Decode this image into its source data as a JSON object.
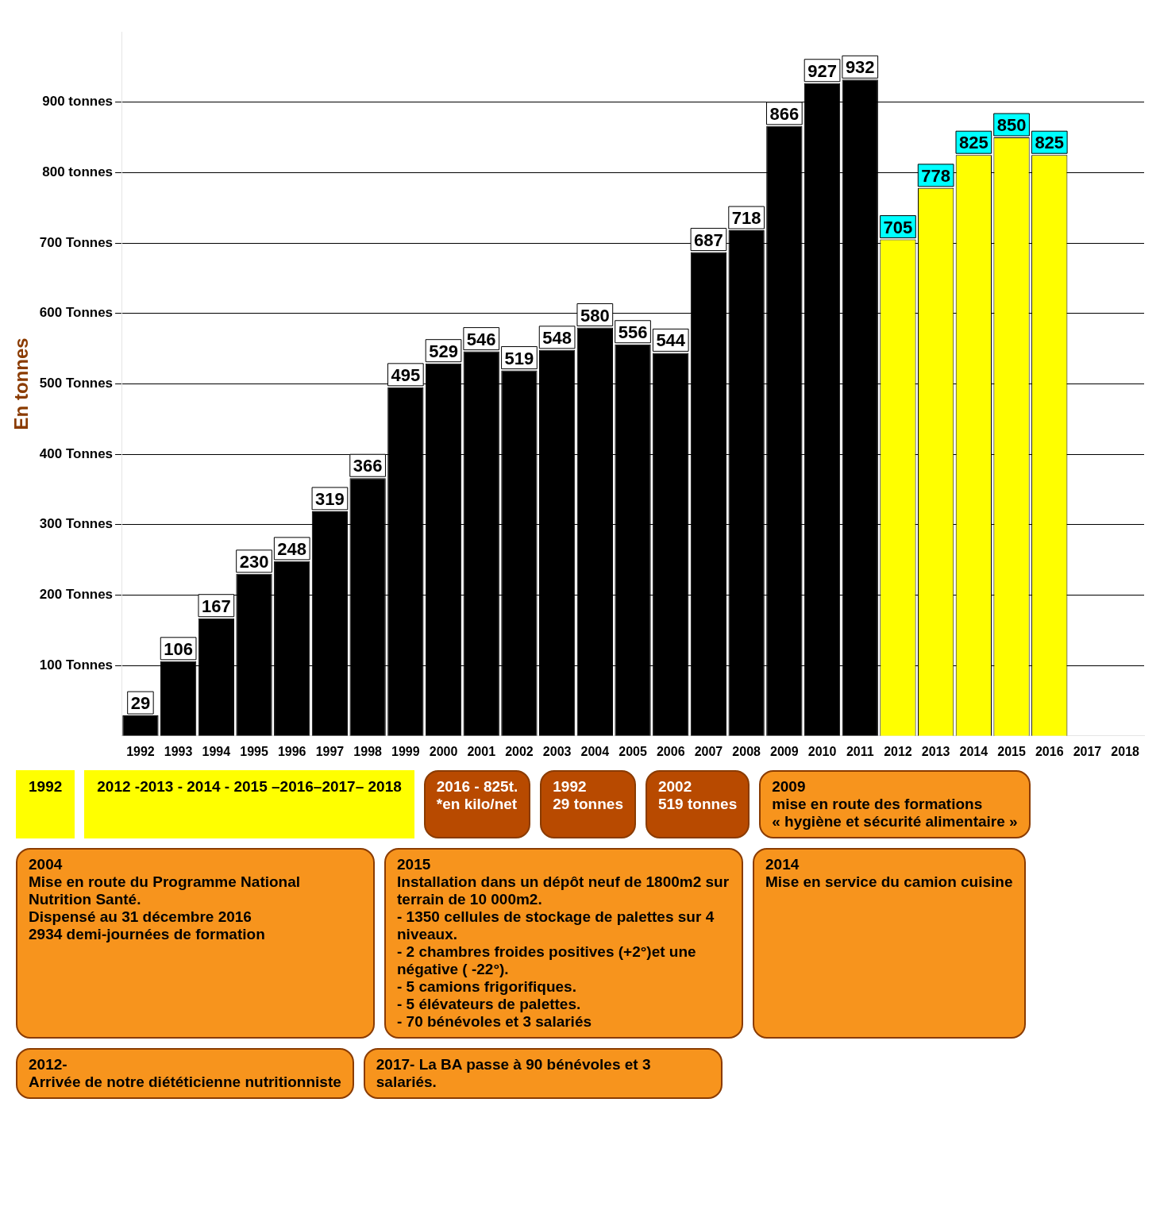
{
  "chart_data": {
    "type": "bar",
    "ylabel": "En tonnes",
    "categories": [
      "1992",
      "1993",
      "1994",
      "1995",
      "1996",
      "1997",
      "1998",
      "1999",
      "2000",
      "2001",
      "2002",
      "2003",
      "2004",
      "2005",
      "2006",
      "2007",
      "2008",
      "2009",
      "2010",
      "2011",
      "2012",
      "2013",
      "2014",
      "2015",
      "2016",
      "2017",
      "2018"
    ],
    "values": [
      29,
      106,
      167,
      230,
      248,
      319,
      366,
      495,
      529,
      546,
      519,
      548,
      580,
      556,
      544,
      687,
      718,
      866,
      927,
      932,
      705,
      778,
      825,
      850,
      825,
      null,
      null
    ],
    "colors": [
      "#000000",
      "#000000",
      "#000000",
      "#000000",
      "#000000",
      "#000000",
      "#000000",
      "#000000",
      "#000000",
      "#000000",
      "#000000",
      "#000000",
      "#000000",
      "#000000",
      "#000000",
      "#000000",
      "#000000",
      "#000000",
      "#000000",
      "#000000",
      "#ffff00",
      "#ffff00",
      "#ffff00",
      "#ffff00",
      "#ffff00",
      "#ffff00",
      "#ffff00"
    ],
    "data_labels": true,
    "ylim": [
      0,
      1000
    ],
    "yticks": [
      {
        "value": 100,
        "label": "100 Tonnes"
      },
      {
        "value": 200,
        "label": "200 Tonnes"
      },
      {
        "value": 300,
        "label": "300 Tonnes"
      },
      {
        "value": 400,
        "label": "400 Tonnes"
      },
      {
        "value": 500,
        "label": "500 Tonnes"
      },
      {
        "value": 600,
        "label": "600 Tonnes"
      },
      {
        "value": 700,
        "label": "700 Tonnes"
      },
      {
        "value": 800,
        "label": "800 tonnes"
      },
      {
        "value": 900,
        "label": "900 tonnes"
      }
    ],
    "grid": "y",
    "legend": false,
    "annotations": [
      "1992",
      "2012 -2013 - 2014 - 2015 –2016–2017– 2018",
      "2016 - 825t.\n*en kilo/net",
      "1992\n29 tonnes",
      "2002\n519 tonnes",
      "2009\nmise en route des formations\n« hygiène et sécurité alimentaire »",
      "2004\nMise en route du Programme National Nutrition Santé.\nDispensé au 31 décembre 2016\n2934 demi-journées de formation",
      "2015\nInstallation dans un dépôt neuf de 1800m2 sur terrain de 10 000m2.\n- 1350 cellules de stockage de palettes sur 4 niveaux.\n- 2 chambres froides positives (+2°)et une négative ( -22°).\n- 5 camions frigorifiques.\n- 5 élévateurs de palettes.\n- 70 bénévoles et 3 salariés",
      "2014\nMise en service du camion cuisine",
      "2012-\nArrivée de notre diététicienne nutritionniste",
      "2017- La BA passe à 90 bénévoles et 3 salariés."
    ]
  }
}
